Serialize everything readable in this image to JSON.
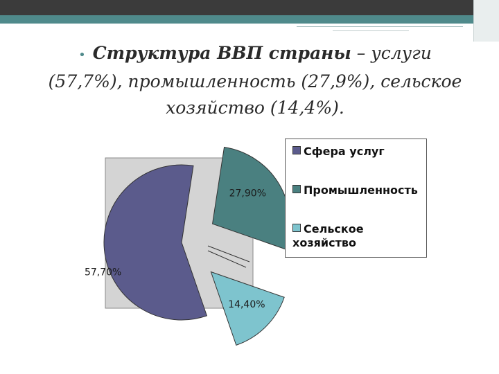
{
  "slide": {
    "bullet": "•",
    "title_bold": "Структура ВВП страны",
    "title_rest": " – услуги (57,7%), промышленность (27,9%), сельское хозяйство (14,4%)."
  },
  "chart_data": {
    "type": "pie",
    "exploded": true,
    "categories": [
      "Сфера услуг",
      "Промышленность",
      "Сельское хозяйство"
    ],
    "values": [
      57.7,
      27.9,
      14.4
    ],
    "data_labels": [
      "57,70%",
      "27,90%",
      "14,40%"
    ],
    "colors": [
      "#5b5b8c",
      "#4a8080",
      "#7ec4ce"
    ],
    "plot_area_background": "#d4d4d4",
    "legend_position": "right",
    "title": "",
    "xlabel": "",
    "ylabel": ""
  }
}
